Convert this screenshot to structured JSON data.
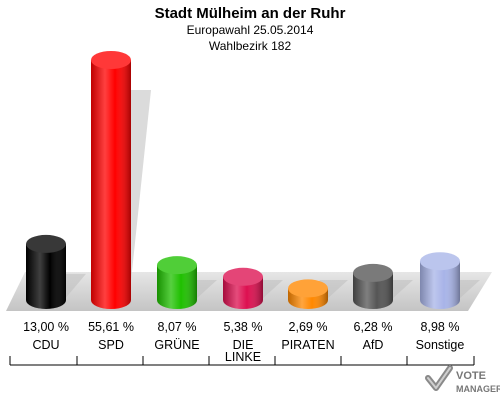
{
  "chart_data": {
    "type": "bar",
    "title": "Stadt Mülheim an der Ruhr",
    "subtitle_lines": [
      "Europawahl 25.05.2014",
      "Wahlbezirk 182"
    ],
    "categories": [
      [
        "CDU"
      ],
      [
        "SPD"
      ],
      [
        "GRÜNE"
      ],
      [
        "DIE",
        "LINKE"
      ],
      [
        "PIRATEN"
      ],
      [
        "AfD"
      ],
      [
        "Sonstige"
      ]
    ],
    "values": [
      13.0,
      55.61,
      8.07,
      5.38,
      2.69,
      6.28,
      8.98
    ],
    "value_labels": [
      "13,00 %",
      "55,61 %",
      "8,07 %",
      "5,38 %",
      "2,69 %",
      "6,28 %",
      "8,98 %"
    ],
    "colors": [
      "#000000",
      "#ff0000",
      "#1fc000",
      "#dd1050",
      "#ff8800",
      "#555555",
      "#a8b4e8"
    ],
    "ylim": [
      0,
      55.61
    ],
    "grid": false,
    "legend": "none"
  },
  "logo": {
    "line1": "VOTE",
    "line2": "MANAGER"
  }
}
